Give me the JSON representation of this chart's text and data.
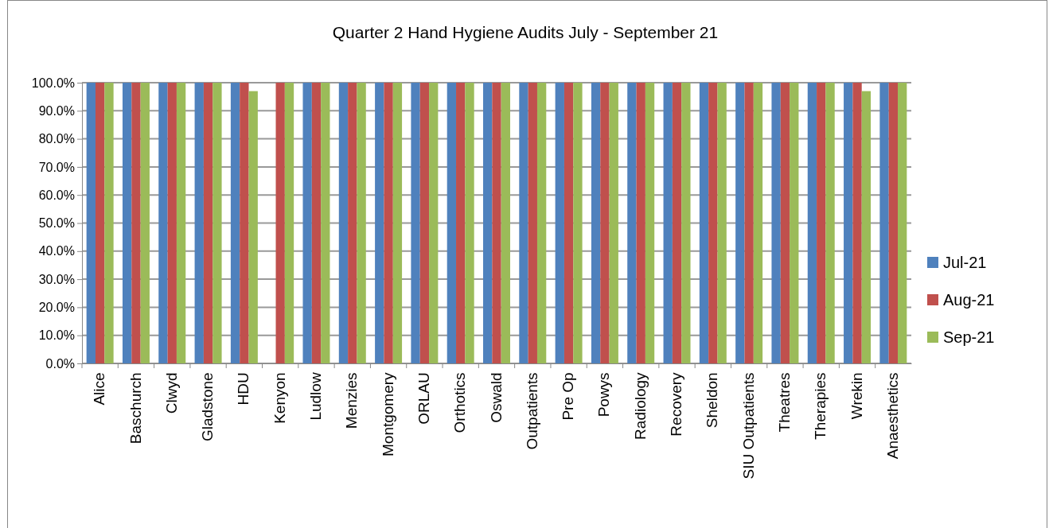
{
  "chart_data": {
    "type": "bar",
    "title": "Quarter 2 Hand Hygiene Audits July - September 21",
    "categories": [
      "Alice",
      "Baschurch",
      "Clwyd",
      "Gladstone",
      "HDU",
      "Kenyon",
      "Ludlow",
      "Menzies",
      "Montgomery",
      "ORLAU",
      "Orthotics",
      "Oswald",
      "Outpatients",
      "Pre Op",
      "Powys",
      "Radiology",
      "Recovery",
      "Sheldon",
      "SIU Outpatients",
      "Theatres",
      "Therapies",
      "Wrekin",
      "Anaesthetics"
    ],
    "series": [
      {
        "name": "Jul-21",
        "color": "#4f81bd",
        "values": [
          100,
          100,
          100,
          100,
          100,
          null,
          100,
          100,
          100,
          100,
          100,
          100,
          100,
          100,
          100,
          100,
          100,
          100,
          100,
          100,
          100,
          100,
          100
        ]
      },
      {
        "name": "Aug-21",
        "color": "#c0504d",
        "values": [
          100,
          100,
          100,
          100,
          100,
          100,
          100,
          100,
          100,
          100,
          100,
          100,
          100,
          100,
          100,
          100,
          100,
          100,
          100,
          100,
          100,
          100,
          100
        ]
      },
      {
        "name": "Sep-21",
        "color": "#9bbb59",
        "values": [
          100,
          100,
          100,
          100,
          97,
          100,
          100,
          100,
          100,
          100,
          100,
          100,
          100,
          100,
          100,
          100,
          100,
          100,
          100,
          100,
          100,
          97,
          100
        ]
      }
    ],
    "ylim": [
      0,
      100
    ],
    "yticks": [
      {
        "value": 0,
        "label": "0.0%"
      },
      {
        "value": 10,
        "label": "10.0%"
      },
      {
        "value": 20,
        "label": "20.0%"
      },
      {
        "value": 30,
        "label": "30.0%"
      },
      {
        "value": 40,
        "label": "40.0%"
      },
      {
        "value": 50,
        "label": "50.0%"
      },
      {
        "value": 60,
        "label": "60.0%"
      },
      {
        "value": 70,
        "label": "70.0%"
      },
      {
        "value": 80,
        "label": "80.0%"
      },
      {
        "value": 90,
        "label": "90.0%"
      },
      {
        "value": 100,
        "label": "100.0%"
      }
    ],
    "grid": "y",
    "legend": "right"
  }
}
